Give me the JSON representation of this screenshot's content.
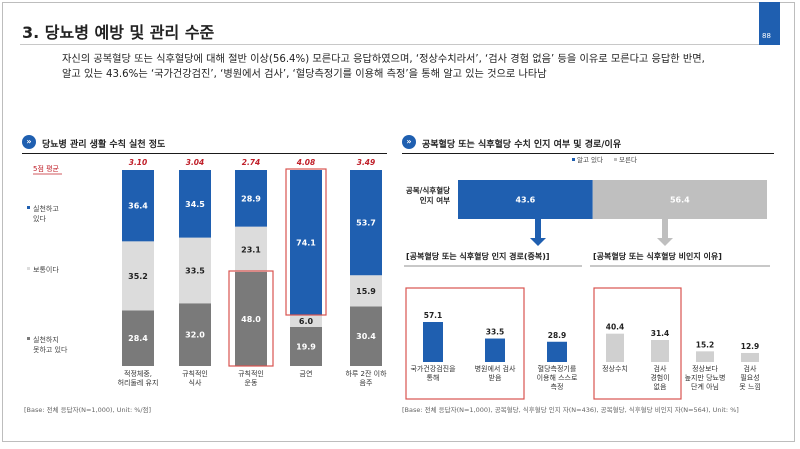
{
  "header": {
    "title": "3. 당뇨병 예방 및 관리 수준",
    "page_number": "88"
  },
  "summary": {
    "line1": "자신의 공복혈당 또는 식후혈당에 대해 절반 이상(56.4%) 모른다고 응답하였으며, ‘정상수치라서’, ‘검사 경험 없음’ 등을 이유로 모른다고 응답한 반면,",
    "line2": "알고 있는 43.6%는 ‘국가건강검진’, ‘병원에서 검사’, ‘혈당측정기를 이용해 측정’을 통해 알고 있는 것으로 나타남"
  },
  "left_section": {
    "icon": "double-chevron-icon",
    "title": "당뇨병 관리 생활 수칙 실천 정도",
    "base_note": "[Base: 전체 응답자(N=1,000), Unit: %/점]"
  },
  "right_section": {
    "icon": "double-chevron-icon",
    "title": "공복혈당 또는 식후혈당 수치 인지 여부 및 경로/이유",
    "base_note": "[Base: 전체 응답자(N=1,000), 공복혈당, 식후혈당 인지 자(N=436), 공복혈당, 식후혈당 비인지 자(N=564), Unit: %]",
    "sub_title_left": "[공복혈당 또는 식후혈당 인지 경로(중복)]",
    "sub_title_right": "[공복혈당 또는 식후혈당 비인지 이유]"
  },
  "colors": {
    "accent_blue": "#1f5fb0",
    "light_gray": "#dcdcdc",
    "dark_gray": "#7a7a7a",
    "mid_gray": "#bfbfbf",
    "score_red": "#c0202a",
    "highlight_red": "#d9534f"
  },
  "chart_data": [
    {
      "type": "bar",
      "stacked": true,
      "score_label": "5점 평균",
      "categories": [
        [
          "적정체중,",
          "허리둘레 유지"
        ],
        [
          "규칙적인",
          "식사"
        ],
        [
          "규칙적인",
          "운동"
        ],
        [
          "금연"
        ],
        [
          "하루 2잔 이하",
          "음주"
        ]
      ],
      "scores": [
        "3.10",
        "3.04",
        "2.74",
        "4.08",
        "3.49"
      ],
      "series": [
        {
          "name": "실천하지 못하고 있다",
          "legend_lines": [
            "실천하지",
            "못하고 있다"
          ],
          "color": "#7a7a7a",
          "values": [
            28.4,
            32.0,
            48.0,
            19.9,
            30.4
          ]
        },
        {
          "name": "보통이다",
          "legend_lines": [
            "보통이다"
          ],
          "color": "#dcdcdc",
          "values": [
            35.2,
            33.5,
            23.1,
            6.0,
            15.9
          ]
        },
        {
          "name": "실천하고 있다",
          "legend_lines": [
            "실천하고",
            "있다"
          ],
          "color": "#1f5fb0",
          "values": [
            36.4,
            34.5,
            28.9,
            74.1,
            53.7
          ]
        }
      ],
      "highlight_categories": [
        2,
        3
      ]
    },
    {
      "type": "bar",
      "stacked": true,
      "orientation": "horizontal",
      "legend": [
        "알고 있다",
        "모른다"
      ],
      "categories": [
        [
          "공복/식후혈당",
          "인지 여부"
        ]
      ],
      "series": [
        {
          "name": "알고 있다",
          "color": "#1f5fb0",
          "values": [
            43.6
          ]
        },
        {
          "name": "모른다",
          "color": "#bfbfbf",
          "values": [
            56.4
          ]
        }
      ]
    },
    {
      "type": "bar",
      "categories": [
        [
          "국가건강검진을",
          "통해"
        ],
        [
          "병원에서 검사",
          "받음"
        ],
        [
          "혈당측정기를",
          "이용해 스스로",
          "측정"
        ]
      ],
      "values": [
        57.1,
        33.5,
        28.9
      ],
      "color": "#1f5fb0",
      "highlight_range": [
        0,
        1
      ]
    },
    {
      "type": "bar",
      "categories": [
        [
          "정상수치"
        ],
        [
          "검사",
          "경험이",
          "없음"
        ],
        [
          "정상보다",
          "높지만 당뇨병",
          "단계 아님"
        ],
        [
          "검사",
          "필요성",
          "못 느낌"
        ]
      ],
      "values": [
        40.4,
        31.4,
        15.2,
        12.9
      ],
      "color": "#d0d0d0",
      "highlight_range": [
        0,
        1
      ]
    }
  ]
}
